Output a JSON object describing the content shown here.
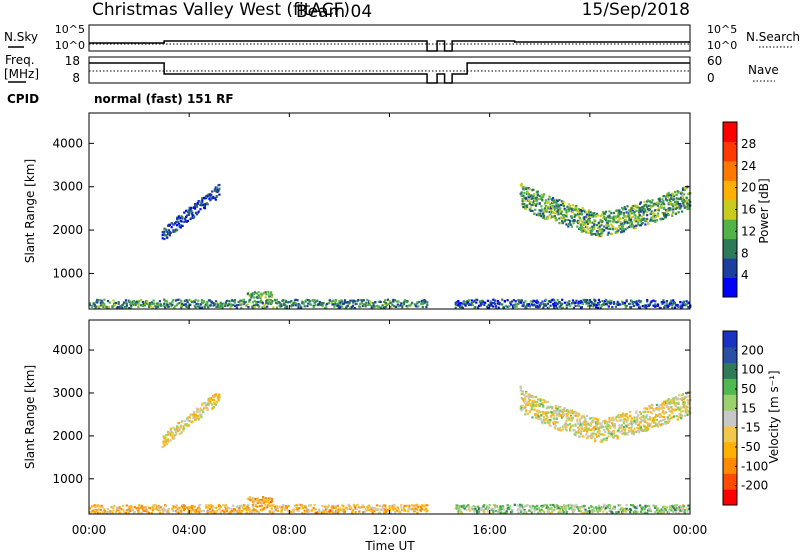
{
  "header": {
    "station": "Christmas Valley West (fitACF)",
    "beam": "Beam 04",
    "date": "15/Sep/2018"
  },
  "noise_panel": {
    "left_label": "N.Sky",
    "left_ticks": [
      "10^5",
      "10^0"
    ],
    "right_ticks": [
      "10^5",
      "10^0"
    ],
    "right_label": "N.Search"
  },
  "freq_panel": {
    "left_label_line1": "Freq.",
    "left_label_line2": "[MHz]",
    "left_ticks": [
      "18",
      "8"
    ],
    "right_ticks": [
      "60",
      "0"
    ],
    "right_label": "Nave"
  },
  "cpid": {
    "label": "CPID",
    "text": "normal (fast) 151 RF"
  },
  "x_axis": {
    "label": "Time UT",
    "ticks": [
      "00:00",
      "04:00",
      "08:00",
      "12:00",
      "16:00",
      "20:00",
      "00:00"
    ]
  },
  "colors": {
    "power_scale": [
      "#0000ff",
      "#1c3f9e",
      "#2d7a5a",
      "#52b349",
      "#c8cc1e",
      "#ffb000",
      "#ff7800",
      "#ff3a00",
      "#ff0000"
    ],
    "velocity_scale": [
      "#ff0000",
      "#ff4a00",
      "#ff8a00",
      "#ffb000",
      "#f3c64c",
      "#c8c8c8",
      "#9bd06a",
      "#4fb84f",
      "#2f7a58",
      "#2a4fa3",
      "#1a33c0"
    ]
  },
  "chart_data": [
    {
      "type": "heatmap",
      "title": "Power",
      "ylabel": "Slant Range [km]",
      "xlabel": "",
      "yticks": [
        "1000",
        "2000",
        "3000",
        "4000"
      ],
      "ylim": [
        180,
        4700
      ],
      "colorbar_label": "Power [dB]",
      "colorbar_ticks": [
        "4",
        "8",
        "12",
        "16",
        "20",
        "24",
        "28"
      ],
      "regions": [
        {
          "t_start": 2.9,
          "t_end": 5.2,
          "r_center_start": 1900,
          "r_center_end": 2950,
          "half_width": 150,
          "level": 0.15
        },
        {
          "t_start": 17.2,
          "t_end": 24.0,
          "r_center": "arc",
          "r_start": 2900,
          "r_min": 2150,
          "t_min": 20.3,
          "r_end": 2800,
          "half_width": 280,
          "level": 0.35
        },
        {
          "t_start": 6.3,
          "t_end": 7.3,
          "r_center_start": 530,
          "r_center_end": 530,
          "half_width": 70,
          "level": 0.4
        },
        {
          "t_start": 0.0,
          "t_end": 13.5,
          "r_center_start": 300,
          "r_center_end": 300,
          "half_width": 120,
          "level": 0.3
        },
        {
          "t_start": 14.6,
          "t_end": 24.0,
          "r_center_start": 300,
          "r_center_end": 300,
          "half_width": 120,
          "level": 0.2
        }
      ]
    },
    {
      "type": "heatmap",
      "title": "Velocity",
      "ylabel": "Slant Range [km]",
      "xlabel": "Time UT",
      "yticks": [
        "1000",
        "2000",
        "3000",
        "4000"
      ],
      "ylim": [
        180,
        4700
      ],
      "colorbar_label": "Velocity [m s⁻¹]",
      "colorbar_ticks": [
        "200",
        "100",
        "50",
        "15",
        "-15",
        "-50",
        "-100",
        "-200"
      ],
      "regions": [
        {
          "t_start": 2.9,
          "t_end": 5.2,
          "r_center_start": 1900,
          "r_center_end": 2950,
          "half_width": 150,
          "level": 0.45
        },
        {
          "t_start": 17.2,
          "t_end": 24.0,
          "r_center": "arc",
          "r_start": 2900,
          "r_min": 2150,
          "t_min": 20.3,
          "r_end": 2800,
          "half_width": 280,
          "level": 0.48
        },
        {
          "t_start": 6.3,
          "t_end": 7.3,
          "r_center_start": 530,
          "r_center_end": 530,
          "half_width": 70,
          "level": 0.32
        },
        {
          "t_start": 0.0,
          "t_end": 13.5,
          "r_center_start": 300,
          "r_center_end": 300,
          "half_width": 120,
          "level": 0.35
        },
        {
          "t_start": 14.6,
          "t_end": 24.0,
          "r_center_start": 300,
          "r_center_end": 300,
          "half_width": 120,
          "level": 0.6
        }
      ]
    }
  ]
}
